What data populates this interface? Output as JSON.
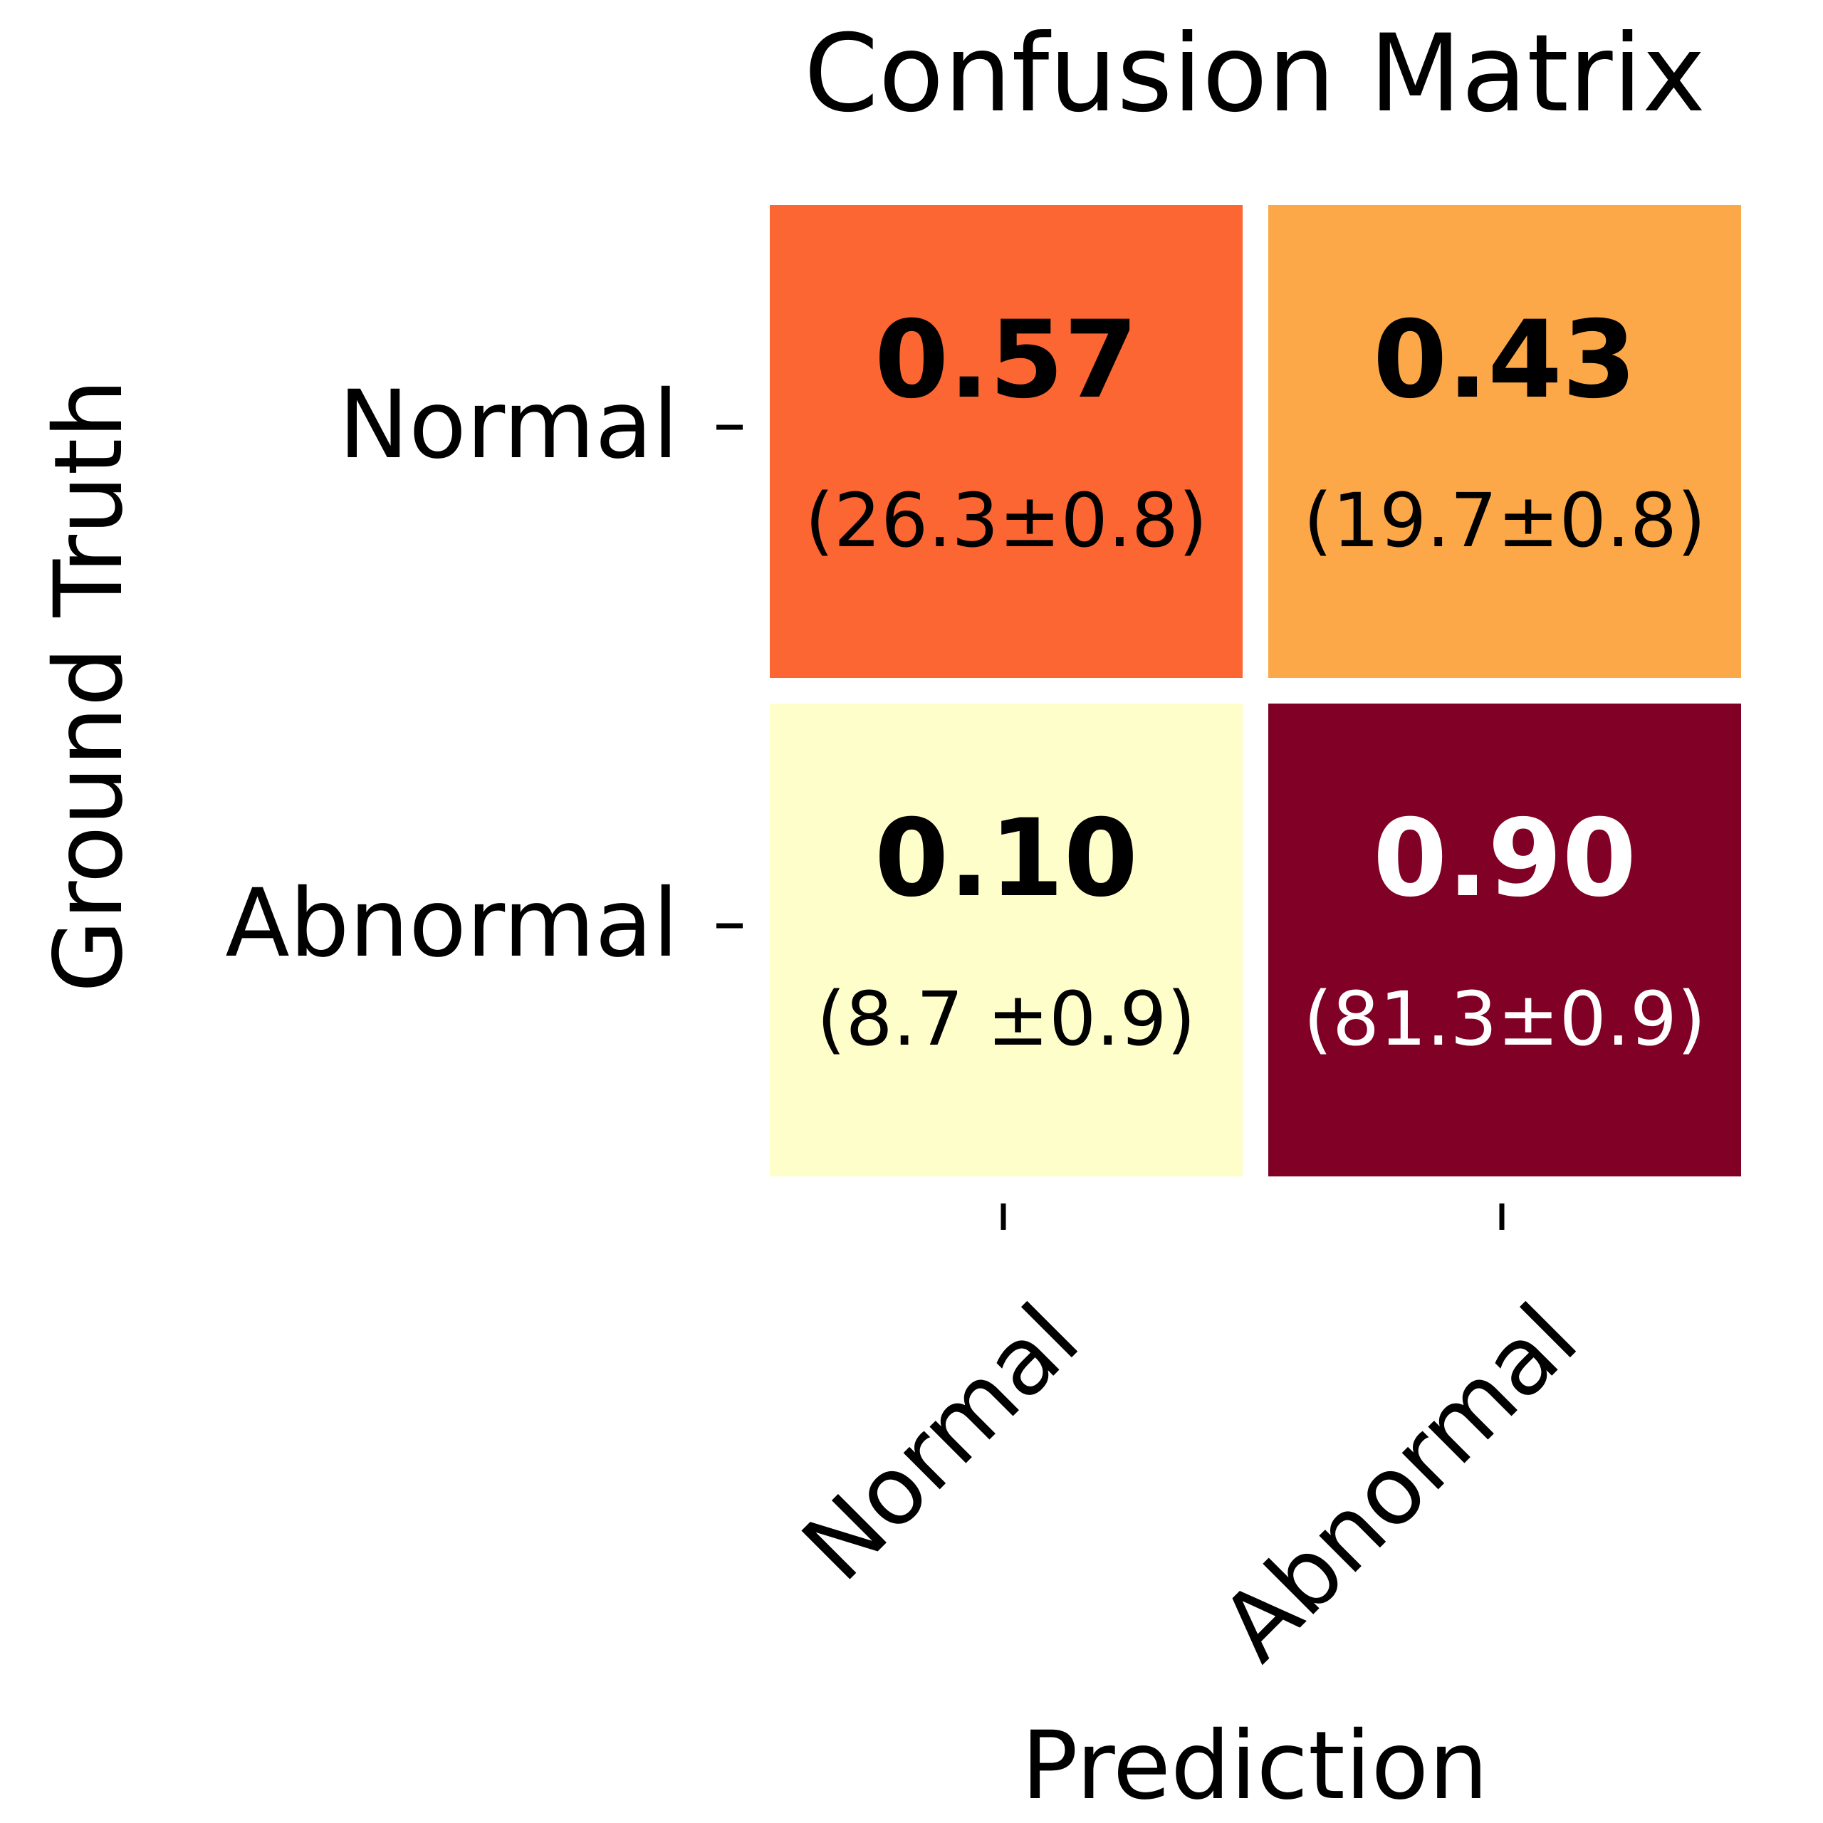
{
  "chart_data": {
    "type": "heatmap",
    "title": "Confusion Matrix",
    "xlabel": "Prediction",
    "ylabel": "Ground Truth",
    "x_categories": [
      "Normal",
      "Abnormal"
    ],
    "y_categories": [
      "Normal",
      "Abnormal"
    ],
    "values": [
      [
        0.57,
        0.43
      ],
      [
        0.1,
        0.9
      ]
    ],
    "value_labels": [
      [
        "0.57",
        "0.43"
      ],
      [
        "0.10",
        "0.90"
      ]
    ],
    "count_labels": [
      [
        "(26.3±0.8)",
        "(19.7±0.8)"
      ],
      [
        "(8.7 ±0.9)",
        "(81.3±0.9)"
      ]
    ],
    "colormap": "YlOrRd",
    "cell_colors": [
      [
        "#fc6632",
        "#fda848"
      ],
      [
        "#fefecb",
        "#800026"
      ]
    ],
    "text_colors": [
      [
        "#000000",
        "#000000"
      ],
      [
        "#000000",
        "#ffffff"
      ]
    ],
    "grid": false,
    "legend": "none"
  }
}
